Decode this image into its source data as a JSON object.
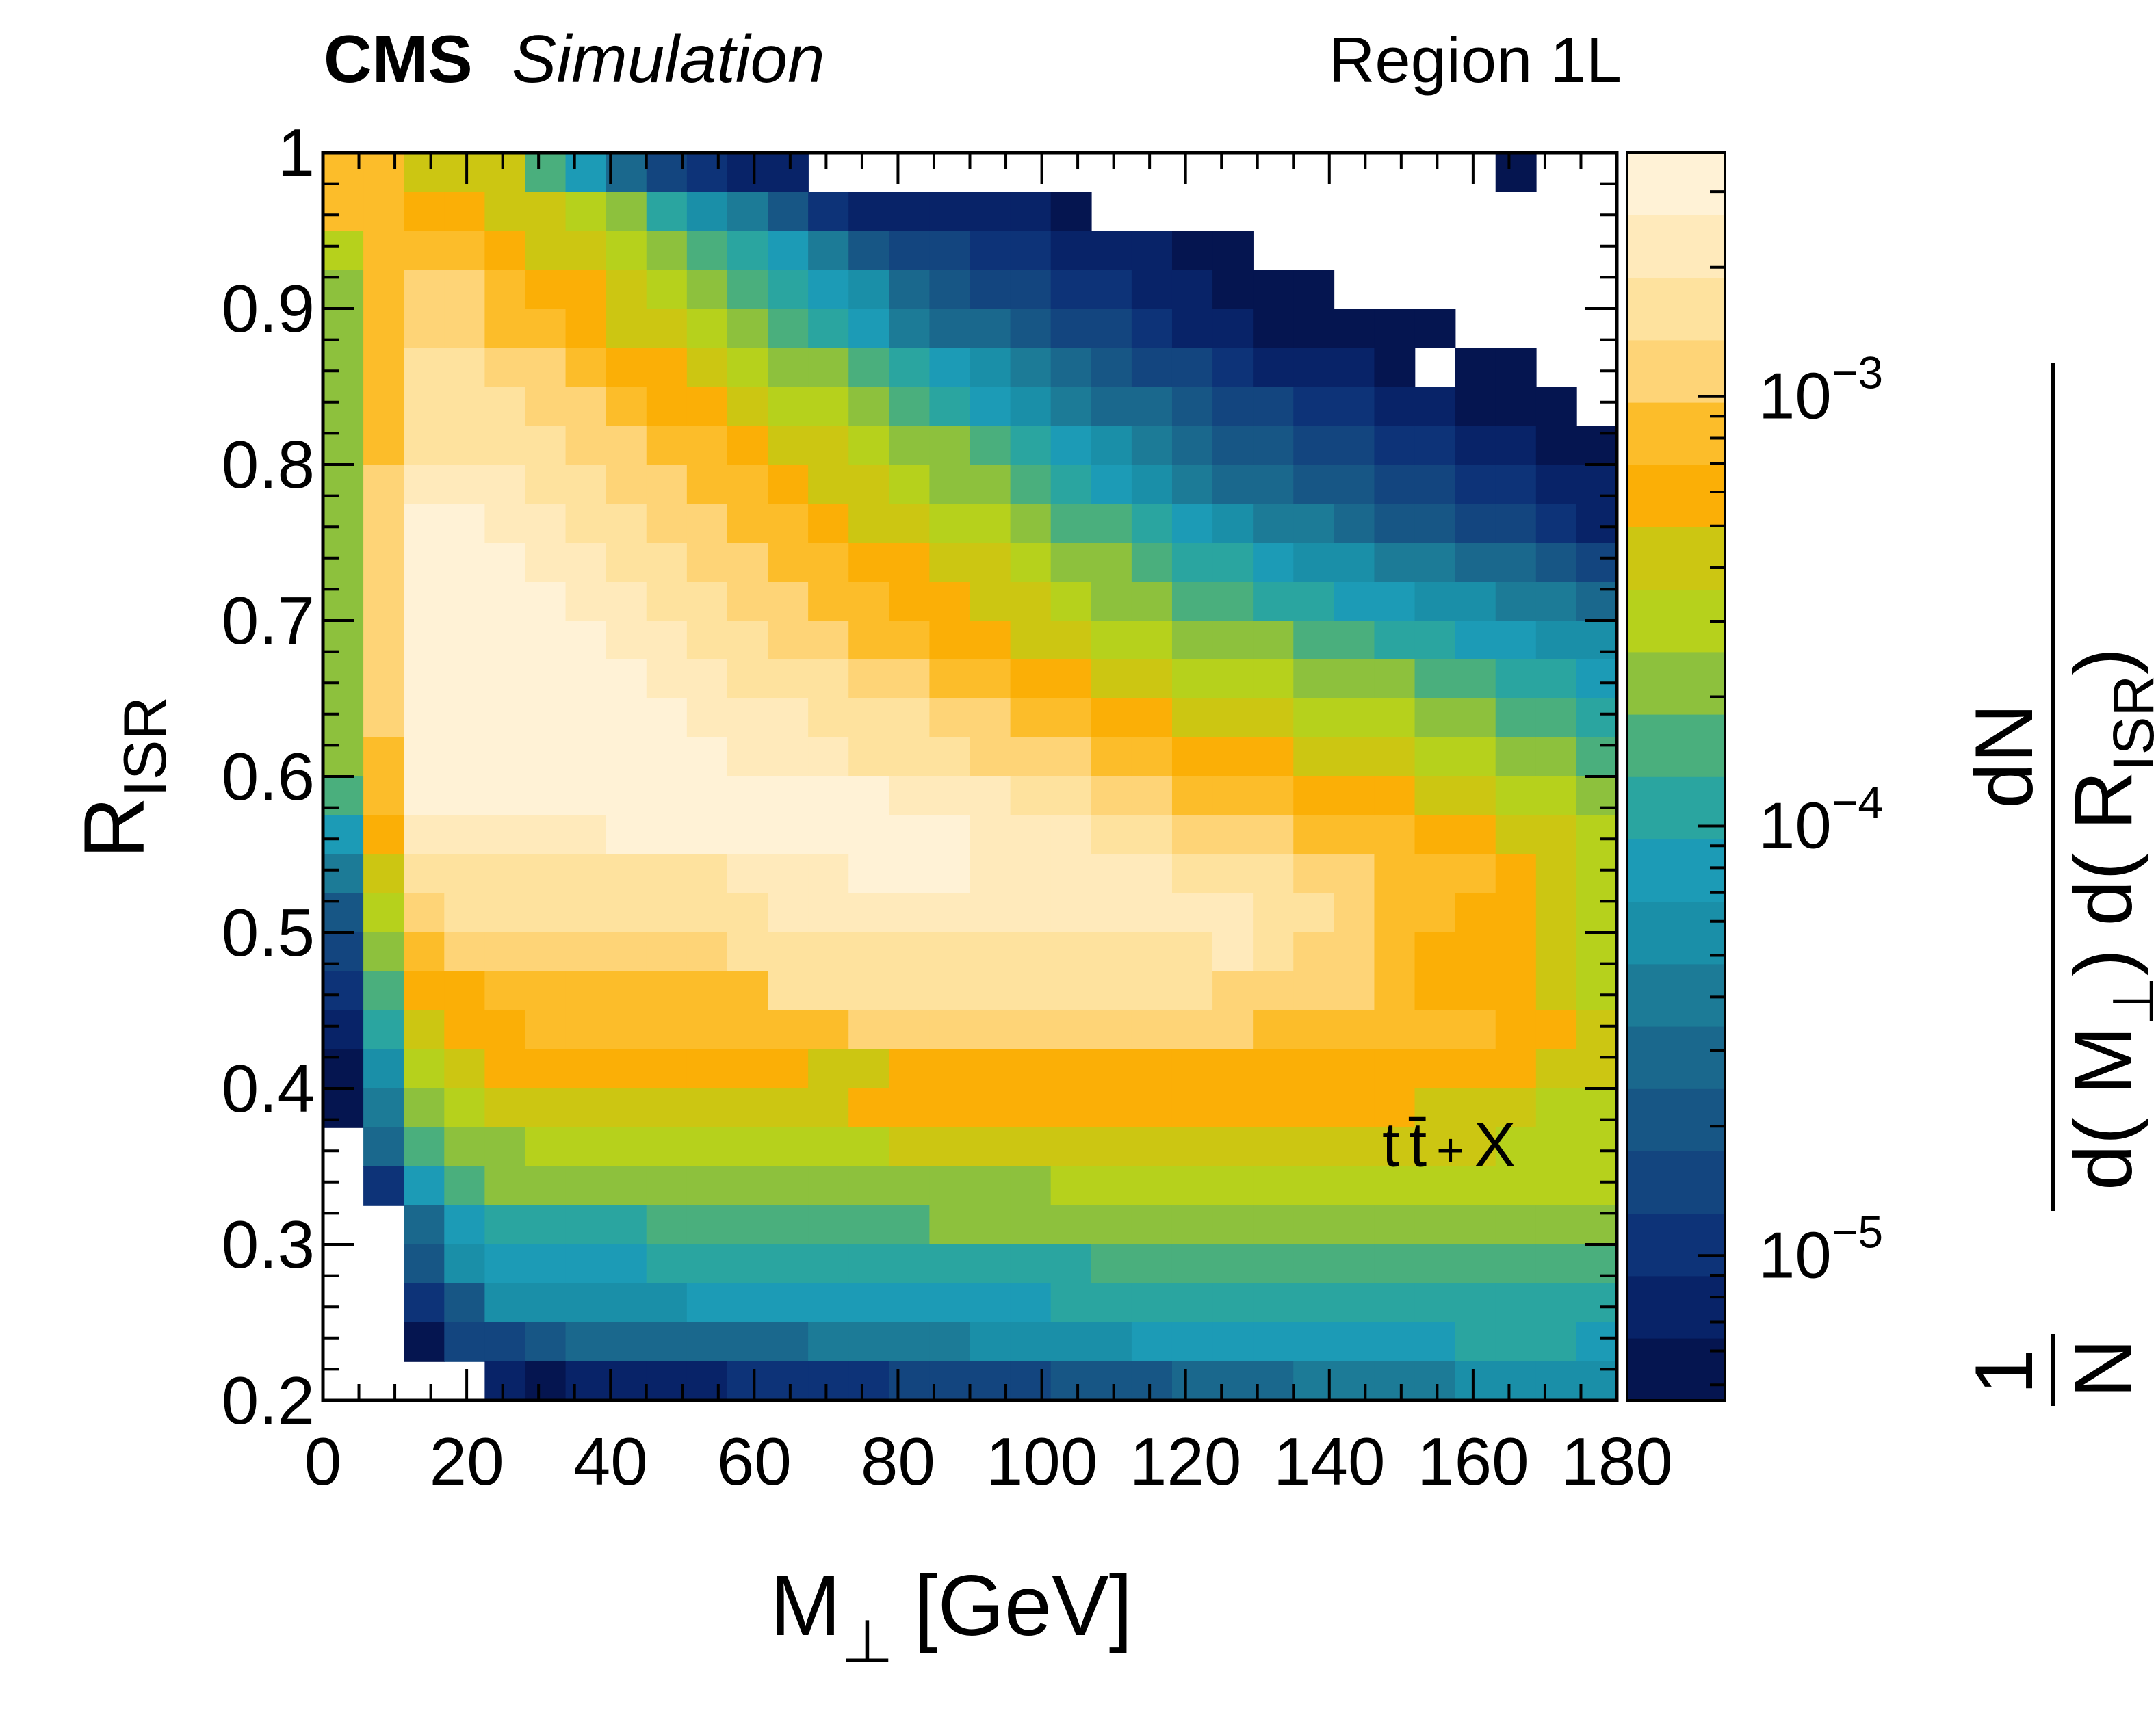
{
  "header": {
    "experiment": "CMS",
    "status": "Simulation",
    "region": "Region 1L"
  },
  "chart_data": {
    "type": "heatmap",
    "x_axis": {
      "label_main": "M",
      "label_sub": "⊥",
      "label_unit": "[GeV]",
      "range": [
        0,
        180
      ],
      "bins": 32,
      "tick_labels": [
        "0",
        "20",
        "40",
        "60",
        "80",
        "100",
        "120",
        "140",
        "160",
        "180"
      ],
      "tick_values": [
        0,
        20,
        40,
        60,
        80,
        100,
        120,
        140,
        160,
        180
      ]
    },
    "y_axis": {
      "label_main": "R",
      "label_sub": "ISR",
      "range": [
        0.2,
        1.0
      ],
      "bins": 32,
      "tick_labels": [
        "0.2",
        "0.3",
        "0.4",
        "0.5",
        "0.6",
        "0.7",
        "0.8",
        "0.9",
        "1"
      ],
      "tick_values": [
        0.2,
        0.3,
        0.4,
        0.5,
        0.6,
        0.7,
        0.8,
        0.9,
        1.0
      ]
    },
    "z_axis": {
      "label_numerator": "dN",
      "label_denominator_parts": [
        "1",
        "N",
        "d( M",
        "⊥",
        ") d( R",
        "ISR",
        ")"
      ],
      "log": true,
      "range": [
        4.6e-06,
        0.0037
      ],
      "tick_labels": [
        {
          "base": "10",
          "exp": "−3",
          "value": 0.001
        },
        {
          "base": "10",
          "exp": "−4",
          "value": 0.0001
        },
        {
          "base": "10",
          "exp": "−5",
          "value": 1e-05
        }
      ]
    },
    "palette": [
      "#051550",
      "#082368",
      "#0d3378",
      "#13457f",
      "#175685",
      "#1a688d",
      "#1c7b97",
      "#1a8fa8",
      "#1c9bb6",
      "#2aa5a0",
      "#4aaf7d",
      "#8dc13d",
      "#b6d11c",
      "#ccc612",
      "#fbaf06",
      "#fcbd2a",
      "#fed477",
      "#fee29e",
      "#ffeabb",
      "#fff2d6"
    ],
    "levels_note": "rows listed from top (R_ISR near 1) to bottom (R_ISR near 0.2); each value is a palette index 0-19, -1 = empty bin",
    "levels": [
      [
        15,
        15,
        13,
        13,
        13,
        10,
        8,
        5,
        3,
        2,
        1,
        1,
        -1,
        -1,
        -1,
        -1,
        -1,
        -1,
        -1,
        -1,
        -1,
        -1,
        -1,
        -1,
        -1,
        -1,
        -1,
        -1,
        -1,
        0,
        -1,
        -1
      ],
      [
        15,
        15,
        14,
        14,
        13,
        13,
        12,
        11,
        9,
        7,
        6,
        4,
        2,
        1,
        1,
        1,
        1,
        1,
        0,
        -1,
        -1,
        -1,
        -1,
        -1,
        -1,
        -1,
        -1,
        -1,
        -1,
        -1,
        -1,
        -1
      ],
      [
        12,
        15,
        15,
        15,
        14,
        13,
        13,
        12,
        11,
        10,
        9,
        8,
        6,
        4,
        3,
        3,
        2,
        2,
        1,
        1,
        1,
        0,
        0,
        -1,
        -1,
        -1,
        -1,
        -1,
        -1,
        -1,
        -1,
        -1
      ],
      [
        11,
        15,
        16,
        16,
        15,
        14,
        14,
        13,
        12,
        11,
        10,
        9,
        8,
        7,
        5,
        4,
        3,
        3,
        2,
        2,
        1,
        1,
        0,
        0,
        0,
        -1,
        -1,
        -1,
        -1,
        -1,
        -1,
        -1
      ],
      [
        11,
        15,
        16,
        16,
        15,
        15,
        14,
        13,
        13,
        12,
        11,
        10,
        9,
        8,
        6,
        5,
        5,
        4,
        3,
        3,
        2,
        1,
        1,
        0,
        0,
        0,
        0,
        0,
        -1,
        -1,
        -1,
        -1
      ],
      [
        11,
        15,
        17,
        17,
        16,
        16,
        15,
        14,
        14,
        13,
        12,
        11,
        11,
        10,
        9,
        8,
        7,
        6,
        5,
        4,
        3,
        3,
        2,
        1,
        1,
        1,
        0,
        -1,
        0,
        0,
        -1,
        -1
      ],
      [
        11,
        15,
        17,
        17,
        17,
        16,
        16,
        15,
        14,
        14,
        13,
        12,
        12,
        11,
        10,
        9,
        8,
        7,
        6,
        5,
        5,
        4,
        3,
        3,
        2,
        2,
        1,
        1,
        0,
        0,
        0,
        -1
      ],
      [
        11,
        15,
        17,
        17,
        17,
        17,
        16,
        16,
        15,
        15,
        14,
        13,
        13,
        12,
        11,
        11,
        10,
        9,
        8,
        7,
        6,
        5,
        4,
        4,
        3,
        3,
        2,
        2,
        1,
        1,
        0,
        0
      ],
      [
        11,
        16,
        18,
        18,
        18,
        17,
        17,
        16,
        16,
        15,
        15,
        14,
        13,
        13,
        12,
        11,
        11,
        10,
        9,
        8,
        7,
        6,
        5,
        5,
        4,
        4,
        3,
        3,
        2,
        2,
        1,
        1
      ],
      [
        11,
        16,
        19,
        19,
        18,
        18,
        17,
        17,
        16,
        16,
        15,
        15,
        14,
        13,
        13,
        12,
        12,
        11,
        10,
        10,
        9,
        8,
        7,
        6,
        6,
        5,
        4,
        4,
        3,
        3,
        2,
        1
      ],
      [
        11,
        16,
        19,
        19,
        19,
        18,
        18,
        17,
        17,
        16,
        16,
        15,
        15,
        14,
        14,
        13,
        13,
        12,
        11,
        11,
        10,
        9,
        9,
        8,
        7,
        7,
        6,
        6,
        5,
        5,
        4,
        3
      ],
      [
        11,
        16,
        19,
        19,
        19,
        19,
        18,
        18,
        17,
        17,
        16,
        16,
        15,
        15,
        14,
        14,
        13,
        13,
        12,
        11,
        11,
        10,
        10,
        9,
        9,
        8,
        8,
        7,
        7,
        6,
        6,
        5
      ],
      [
        11,
        16,
        19,
        19,
        19,
        19,
        19,
        18,
        18,
        17,
        17,
        16,
        16,
        15,
        15,
        14,
        14,
        13,
        13,
        12,
        12,
        11,
        11,
        11,
        10,
        10,
        9,
        9,
        8,
        8,
        7,
        7
      ],
      [
        11,
        16,
        19,
        19,
        19,
        19,
        19,
        19,
        18,
        18,
        17,
        17,
        17,
        16,
        16,
        15,
        15,
        14,
        14,
        13,
        13,
        12,
        12,
        12,
        11,
        11,
        11,
        10,
        10,
        9,
        9,
        8
      ],
      [
        11,
        16,
        19,
        19,
        19,
        19,
        19,
        19,
        19,
        18,
        18,
        18,
        17,
        17,
        17,
        16,
        16,
        15,
        15,
        14,
        14,
        13,
        13,
        13,
        12,
        12,
        12,
        11,
        11,
        10,
        10,
        9
      ],
      [
        11,
        15,
        19,
        19,
        19,
        19,
        19,
        19,
        19,
        19,
        18,
        18,
        18,
        17,
        17,
        17,
        16,
        16,
        16,
        15,
        15,
        14,
        14,
        14,
        13,
        13,
        13,
        12,
        12,
        11,
        11,
        10
      ],
      [
        10,
        15,
        19,
        19,
        19,
        19,
        19,
        19,
        19,
        19,
        19,
        19,
        19,
        19,
        18,
        18,
        18,
        17,
        17,
        16,
        16,
        15,
        15,
        15,
        14,
        14,
        14,
        13,
        13,
        12,
        12,
        11
      ],
      [
        8,
        14,
        18,
        18,
        18,
        18,
        18,
        19,
        19,
        19,
        19,
        19,
        19,
        19,
        19,
        19,
        18,
        18,
        18,
        17,
        17,
        16,
        16,
        16,
        15,
        15,
        15,
        14,
        14,
        13,
        13,
        12
      ],
      [
        6,
        13,
        17,
        17,
        17,
        17,
        17,
        17,
        17,
        17,
        18,
        18,
        18,
        19,
        19,
        19,
        18,
        18,
        18,
        18,
        18,
        17,
        17,
        17,
        16,
        16,
        15,
        15,
        15,
        14,
        13,
        12
      ],
      [
        4,
        12,
        16,
        17,
        17,
        17,
        17,
        17,
        17,
        17,
        17,
        18,
        18,
        18,
        18,
        18,
        18,
        18,
        18,
        18,
        18,
        18,
        18,
        17,
        17,
        16,
        15,
        15,
        14,
        14,
        13,
        12
      ],
      [
        3,
        11,
        15,
        16,
        16,
        16,
        16,
        16,
        16,
        16,
        17,
        17,
        17,
        17,
        17,
        17,
        17,
        17,
        17,
        17,
        17,
        17,
        18,
        17,
        16,
        16,
        15,
        14,
        14,
        14,
        13,
        12
      ],
      [
        2,
        10,
        14,
        14,
        15,
        15,
        15,
        15,
        15,
        15,
        15,
        17,
        17,
        17,
        17,
        17,
        17,
        17,
        17,
        17,
        17,
        17,
        16,
        16,
        16,
        16,
        15,
        14,
        14,
        14,
        13,
        12
      ],
      [
        1,
        9,
        13,
        14,
        14,
        15,
        15,
        15,
        15,
        15,
        15,
        15,
        15,
        16,
        16,
        16,
        16,
        16,
        16,
        16,
        16,
        16,
        16,
        15,
        15,
        15,
        15,
        15,
        15,
        14,
        14,
        13
      ],
      [
        0,
        7,
        12,
        13,
        14,
        14,
        14,
        14,
        14,
        14,
        14,
        14,
        13,
        13,
        14,
        14,
        14,
        14,
        14,
        14,
        14,
        14,
        14,
        14,
        14,
        14,
        14,
        14,
        14,
        14,
        13,
        13
      ],
      [
        0,
        6,
        11,
        12,
        13,
        13,
        13,
        13,
        13,
        13,
        13,
        13,
        13,
        14,
        14,
        14,
        14,
        14,
        14,
        14,
        14,
        14,
        14,
        14,
        14,
        14,
        14,
        13,
        13,
        13,
        12,
        12
      ],
      [
        -1,
        5,
        10,
        11,
        11,
        12,
        12,
        12,
        12,
        12,
        12,
        12,
        12,
        12,
        13,
        13,
        13,
        13,
        13,
        13,
        13,
        13,
        13,
        13,
        13,
        13,
        13,
        13,
        13,
        12,
        12,
        12
      ],
      [
        -1,
        2,
        8,
        10,
        11,
        11,
        11,
        11,
        11,
        11,
        11,
        11,
        11,
        11,
        11,
        11,
        11,
        11,
        12,
        12,
        12,
        12,
        12,
        12,
        12,
        12,
        12,
        12,
        12,
        12,
        12,
        12
      ],
      [
        -1,
        -1,
        5,
        8,
        9,
        9,
        9,
        9,
        10,
        10,
        10,
        10,
        10,
        10,
        10,
        11,
        11,
        11,
        11,
        11,
        11,
        11,
        11,
        11,
        11,
        11,
        11,
        11,
        11,
        11,
        11,
        11
      ],
      [
        -1,
        -1,
        4,
        7,
        8,
        8,
        8,
        8,
        9,
        9,
        9,
        9,
        9,
        9,
        9,
        9,
        9,
        9,
        9,
        10,
        10,
        10,
        10,
        10,
        10,
        10,
        10,
        10,
        10,
        10,
        10,
        10
      ],
      [
        -1,
        -1,
        2,
        4,
        7,
        7,
        7,
        7,
        7,
        8,
        8,
        8,
        8,
        8,
        8,
        8,
        8,
        8,
        9,
        9,
        9,
        9,
        9,
        9,
        9,
        9,
        9,
        9,
        9,
        9,
        9,
        9
      ],
      [
        -1,
        -1,
        0,
        3,
        3,
        4,
        5,
        5,
        5,
        5,
        5,
        5,
        6,
        6,
        6,
        6,
        7,
        7,
        7,
        7,
        8,
        8,
        8,
        8,
        8,
        8,
        8,
        8,
        9,
        9,
        9,
        8
      ],
      [
        -1,
        -1,
        -1,
        -1,
        1,
        0,
        1,
        1,
        1,
        1,
        2,
        2,
        2,
        2,
        3,
        3,
        3,
        3,
        4,
        4,
        4,
        5,
        5,
        5,
        6,
        6,
        6,
        6,
        7,
        7,
        7,
        7
      ]
    ],
    "annotation": {
      "parts": [
        "t",
        "t̄",
        "+",
        "X"
      ]
    },
    "grid": false,
    "legend": "colorbar-right"
  }
}
